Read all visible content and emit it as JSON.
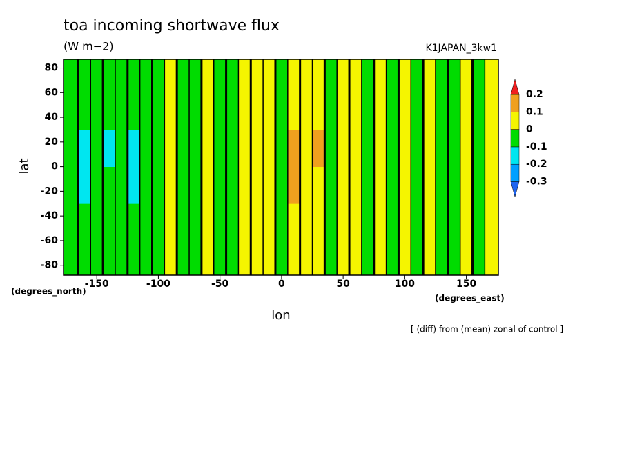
{
  "chart_data": {
    "type": "contour",
    "title": "toa incoming shortwave flux",
    "subtitle": "(W m−2)",
    "run_label": "K1JAPAN_3kw1",
    "x_label": "lon",
    "y_label": "lat",
    "x_units": "(degrees_east)",
    "y_units": "(degrees_north)",
    "note": "[ (diff) from (mean) zonal of control ]",
    "xlim": [
      -177,
      176
    ],
    "ylim": [
      -88,
      87
    ],
    "xticks": [
      -150,
      -100,
      -50,
      0,
      50,
      100,
      150
    ],
    "yticks": [
      -80,
      -60,
      -40,
      -20,
      0,
      20,
      40,
      60,
      80
    ],
    "x": [
      -177,
      -165,
      -155,
      -145,
      -135,
      -125,
      -115,
      -105,
      -95,
      -85,
      -75,
      -65,
      -55,
      -45,
      -35,
      -25,
      -15,
      -5,
      5,
      15,
      25,
      35,
      45,
      55,
      65,
      75,
      85,
      95,
      105,
      115,
      125,
      135,
      145,
      155,
      165,
      176
    ],
    "y": [
      -88,
      -30,
      0,
      30,
      87
    ],
    "z": [
      [
        -0.05,
        -0.05,
        -0.05,
        -0.05,
        -0.05,
        -0.05,
        -0.05,
        -0.05,
        0.05,
        -0.05,
        -0.05,
        0.05,
        -0.05,
        -0.05,
        0.05,
        0.05,
        0.05,
        -0.05,
        0.05,
        0.05,
        0.05,
        -0.05,
        0.05,
        0.05,
        -0.05,
        0.05,
        -0.05,
        0.05,
        -0.05,
        0.05,
        -0.05,
        -0.05,
        0.05,
        -0.05,
        0.05
      ],
      [
        -0.05,
        -0.15,
        -0.05,
        -0.05,
        -0.05,
        -0.15,
        -0.05,
        -0.05,
        0.05,
        -0.05,
        -0.05,
        0.05,
        -0.05,
        -0.05,
        0.05,
        0.05,
        0.05,
        -0.05,
        0.15,
        0.05,
        0.05,
        -0.05,
        0.05,
        0.05,
        -0.05,
        0.05,
        -0.05,
        0.05,
        -0.05,
        0.05,
        -0.05,
        -0.05,
        0.05,
        -0.05,
        0.05
      ],
      [
        -0.05,
        -0.15,
        -0.05,
        -0.15,
        -0.05,
        -0.15,
        -0.05,
        -0.05,
        0.05,
        -0.05,
        -0.05,
        0.05,
        -0.05,
        -0.05,
        0.05,
        0.05,
        0.05,
        -0.05,
        0.15,
        0.05,
        0.15,
        -0.05,
        0.05,
        0.05,
        -0.05,
        0.05,
        -0.05,
        0.05,
        -0.05,
        0.05,
        -0.05,
        -0.05,
        0.05,
        -0.05,
        0.05
      ],
      [
        -0.05,
        -0.05,
        -0.05,
        -0.05,
        -0.05,
        -0.05,
        -0.05,
        -0.05,
        0.05,
        -0.05,
        -0.05,
        0.05,
        -0.05,
        -0.05,
        0.05,
        0.05,
        0.05,
        -0.05,
        0.05,
        0.05,
        0.05,
        -0.05,
        0.05,
        0.05,
        -0.05,
        0.05,
        -0.05,
        0.05,
        -0.05,
        0.05,
        -0.05,
        -0.05,
        0.05,
        -0.05,
        0.05
      ]
    ],
    "colorbar": {
      "levels": [
        -0.3,
        -0.2,
        -0.1,
        0,
        0.1,
        0.2
      ],
      "colors": [
        "#1e64f0",
        "#00a0ff",
        "#00e6f0",
        "#00dc00",
        "#f5f500",
        "#f0a01e",
        "#f01e1e"
      ]
    }
  }
}
